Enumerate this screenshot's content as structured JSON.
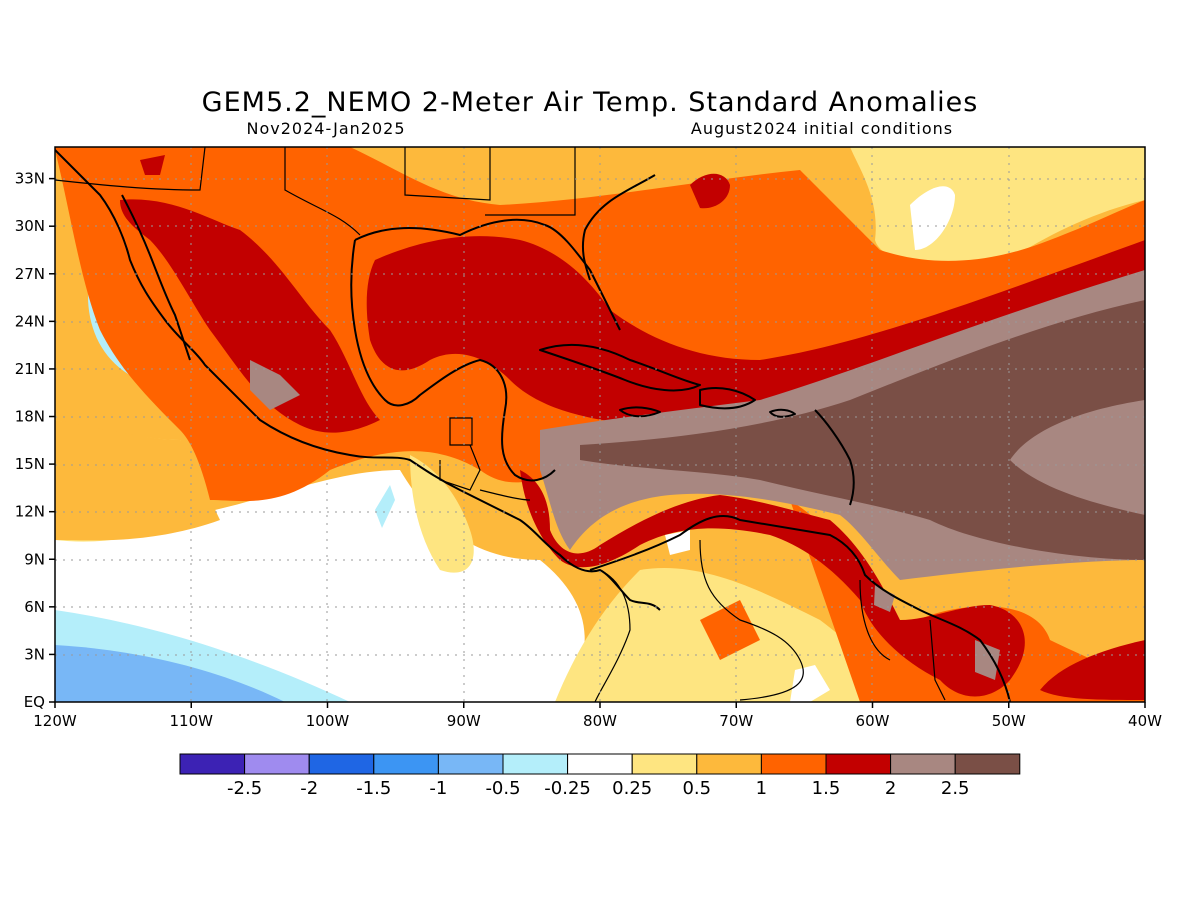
{
  "title": "GEM5.2_NEMO 2-Meter Air Temp. Standard Anomalies",
  "subtitle_left": "Nov2024-Jan2025",
  "subtitle_right": "August2024 initial conditions",
  "map": {
    "lon_ticks": [
      "120W",
      "110W",
      "100W",
      "90W",
      "80W",
      "70W",
      "60W",
      "50W",
      "40W"
    ],
    "lat_ticks": [
      "EQ",
      "3N",
      "6N",
      "9N",
      "12N",
      "15N",
      "18N",
      "21N",
      "24N",
      "27N",
      "30N",
      "33N"
    ]
  },
  "legend": {
    "colors": [
      "#3c22b4",
      "#9f8bef",
      "#1f66e4",
      "#3c95f3",
      "#78b7f6",
      "#b4eefa",
      "#ffffff",
      "#fee581",
      "#fdb93c",
      "#ff6300",
      "#c20000",
      "#a88781",
      "#7a4f46"
    ],
    "labels": [
      "-2.5",
      "-2",
      "-1.5",
      "-1",
      "-0.5",
      "-0.25",
      "0.25",
      "0.5",
      "1",
      "1.5",
      "2",
      "2.5"
    ]
  }
}
